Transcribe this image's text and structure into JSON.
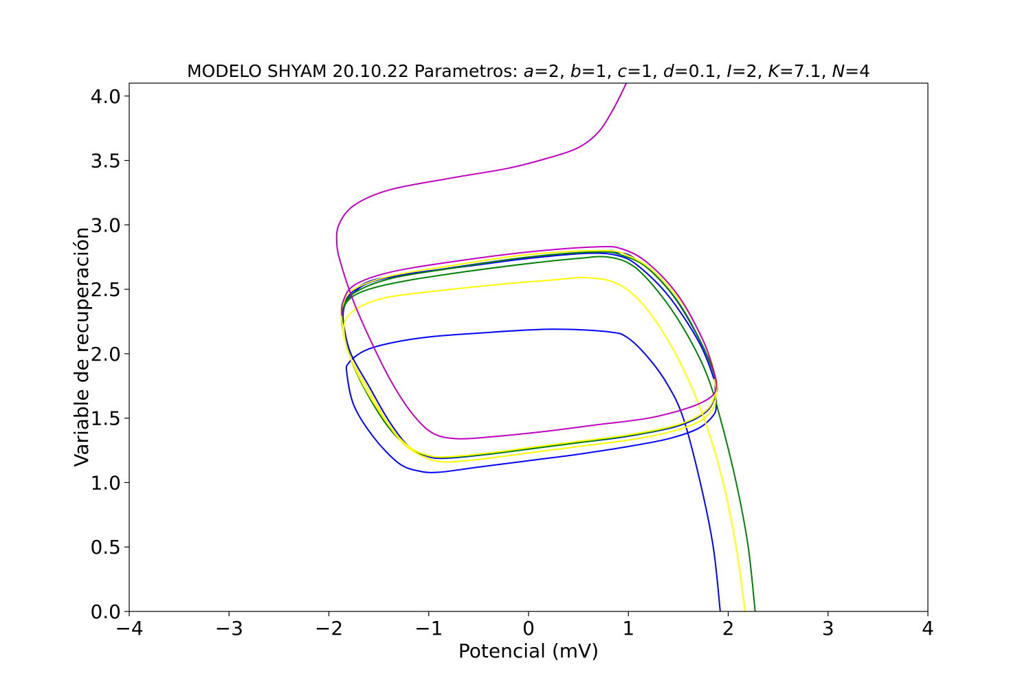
{
  "chart_data": {
    "type": "line",
    "title": {
      "prefix": "MODELO SHYAM 20.10.22 Parametros: ",
      "params": [
        {
          "name": "a",
          "value": "=2, "
        },
        {
          "name": "b",
          "value": "=1, "
        },
        {
          "name": "c",
          "value": "=1,  "
        },
        {
          "name": "d",
          "value": "=0.1, "
        },
        {
          "name": "I",
          "value": "=2, "
        },
        {
          "name": "K",
          "value": "=7.1, "
        },
        {
          "name": "N",
          "value": "=4"
        }
      ]
    },
    "xlabel": "Potencial (mV)",
    "ylabel": "Variable de recuperación",
    "xlim": [
      -4,
      4
    ],
    "ylim": [
      0,
      4.1
    ],
    "xticks": [
      -4,
      -3,
      -2,
      -1,
      0,
      1,
      2,
      3,
      4
    ],
    "xtick_labels": [
      "−4",
      "−3",
      "−2",
      "−1",
      "0",
      "1",
      "2",
      "3",
      "4"
    ],
    "yticks": [
      0,
      0.5,
      1,
      1.5,
      2,
      2.5,
      3,
      3.5,
      4
    ],
    "ytick_labels": [
      "0.0",
      "0.5",
      "1.0",
      "1.5",
      "2.0",
      "2.5",
      "3.0",
      "3.5",
      "4.0"
    ],
    "grid": false,
    "legend": "none",
    "series": [
      {
        "color": "#0000ff",
        "points": [
          [
            1.92,
            0
          ],
          [
            1.85,
            0.5
          ],
          [
            1.72,
            1.0
          ],
          [
            1.55,
            1.5
          ],
          [
            1.4,
            1.75
          ],
          [
            1.22,
            1.95
          ],
          [
            1.0,
            2.12
          ],
          [
            0.8,
            2.17
          ],
          [
            0.2,
            2.19
          ],
          [
            -0.5,
            2.16
          ],
          [
            -1.0,
            2.13
          ],
          [
            -1.4,
            2.08
          ],
          [
            -1.65,
            2.02
          ],
          [
            -1.8,
            1.93
          ],
          [
            -1.82,
            1.85
          ],
          [
            -1.75,
            1.6
          ],
          [
            -1.55,
            1.35
          ],
          [
            -1.3,
            1.15
          ],
          [
            -1.1,
            1.09
          ],
          [
            -0.9,
            1.08
          ],
          [
            -0.5,
            1.12
          ],
          [
            0.0,
            1.17
          ],
          [
            0.5,
            1.22
          ],
          [
            1.0,
            1.28
          ],
          [
            1.4,
            1.34
          ],
          [
            1.7,
            1.42
          ],
          [
            1.85,
            1.52
          ],
          [
            1.88,
            1.6
          ],
          [
            1.87,
            1.72
          ],
          [
            1.85,
            1.82
          ],
          [
            1.7,
            2.1
          ],
          [
            1.4,
            2.45
          ],
          [
            1.1,
            2.68
          ],
          [
            0.9,
            2.76
          ],
          [
            0.6,
            2.78
          ],
          [
            0.0,
            2.74
          ],
          [
            -0.6,
            2.68
          ],
          [
            -1.2,
            2.62
          ],
          [
            -1.6,
            2.55
          ],
          [
            -1.78,
            2.45
          ],
          [
            -1.85,
            2.35
          ],
          [
            -1.85,
            2.22
          ],
          [
            -1.78,
            2.0
          ],
          [
            -1.6,
            1.75
          ],
          [
            -1.4,
            1.48
          ],
          [
            -1.2,
            1.28
          ],
          [
            -1.0,
            1.2
          ],
          [
            -0.8,
            1.19
          ],
          [
            -0.4,
            1.22
          ],
          [
            0.0,
            1.26
          ],
          [
            0.5,
            1.31
          ],
          [
            1.0,
            1.36
          ],
          [
            1.5,
            1.44
          ],
          [
            1.78,
            1.55
          ],
          [
            1.87,
            1.68
          ],
          [
            1.88,
            1.78
          ],
          [
            1.75,
            2.05
          ],
          [
            1.45,
            2.45
          ],
          [
            1.1,
            2.72
          ],
          [
            0.8,
            2.79
          ],
          [
            0.0,
            2.75
          ],
          [
            -1.0,
            2.64
          ],
          [
            -1.6,
            2.56
          ],
          [
            -1.85,
            2.4
          ],
          [
            -1.86,
            2.28
          ]
        ]
      },
      {
        "color": "#008000",
        "points": [
          [
            2.27,
            0
          ],
          [
            2.2,
            0.5
          ],
          [
            2.08,
            1.0
          ],
          [
            1.92,
            1.5
          ],
          [
            1.78,
            1.85
          ],
          [
            1.55,
            2.2
          ],
          [
            1.3,
            2.48
          ],
          [
            1.05,
            2.68
          ],
          [
            0.8,
            2.75
          ],
          [
            0.5,
            2.74
          ],
          [
            0.0,
            2.7
          ],
          [
            -0.6,
            2.64
          ],
          [
            -1.2,
            2.57
          ],
          [
            -1.6,
            2.5
          ],
          [
            -1.8,
            2.42
          ],
          [
            -1.87,
            2.3
          ],
          [
            -1.85,
            2.15
          ],
          [
            -1.75,
            1.9
          ],
          [
            -1.55,
            1.6
          ],
          [
            -1.35,
            1.38
          ],
          [
            -1.15,
            1.25
          ],
          [
            -0.95,
            1.2
          ],
          [
            -0.7,
            1.2
          ],
          [
            -0.3,
            1.23
          ],
          [
            0.2,
            1.28
          ],
          [
            0.7,
            1.33
          ],
          [
            1.2,
            1.39
          ],
          [
            1.55,
            1.46
          ],
          [
            1.78,
            1.56
          ],
          [
            1.87,
            1.68
          ],
          [
            1.88,
            1.78
          ],
          [
            1.75,
            2.05
          ],
          [
            1.5,
            2.4
          ],
          [
            1.2,
            2.66
          ],
          [
            0.95,
            2.76
          ],
          [
            0.7,
            2.79
          ],
          [
            0.0,
            2.75
          ],
          [
            -0.8,
            2.66
          ],
          [
            -1.4,
            2.58
          ],
          [
            -1.75,
            2.47
          ],
          [
            -1.86,
            2.35
          ],
          [
            -1.86,
            2.25
          ]
        ]
      },
      {
        "color": "#ffff00",
        "points": [
          [
            2.17,
            0
          ],
          [
            2.08,
            0.5
          ],
          [
            1.95,
            1.0
          ],
          [
            1.78,
            1.45
          ],
          [
            1.6,
            1.8
          ],
          [
            1.4,
            2.1
          ],
          [
            1.15,
            2.38
          ],
          [
            0.9,
            2.54
          ],
          [
            0.6,
            2.59
          ],
          [
            0.2,
            2.57
          ],
          [
            -0.4,
            2.53
          ],
          [
            -1.0,
            2.48
          ],
          [
            -1.4,
            2.44
          ],
          [
            -1.65,
            2.38
          ],
          [
            -1.8,
            2.3
          ],
          [
            -1.85,
            2.2
          ],
          [
            -1.8,
            2.0
          ],
          [
            -1.65,
            1.75
          ],
          [
            -1.45,
            1.5
          ],
          [
            -1.25,
            1.3
          ],
          [
            -1.05,
            1.2
          ],
          [
            -0.85,
            1.16
          ],
          [
            -0.5,
            1.18
          ],
          [
            0.0,
            1.23
          ],
          [
            0.5,
            1.28
          ],
          [
            1.0,
            1.33
          ],
          [
            1.4,
            1.39
          ],
          [
            1.7,
            1.47
          ],
          [
            1.85,
            1.58
          ],
          [
            1.88,
            1.7
          ],
          [
            1.88,
            1.8
          ],
          [
            1.78,
            2.05
          ],
          [
            1.55,
            2.38
          ],
          [
            1.25,
            2.64
          ],
          [
            1.0,
            2.76
          ],
          [
            0.75,
            2.8
          ],
          [
            0.0,
            2.77
          ],
          [
            -0.8,
            2.68
          ],
          [
            -1.4,
            2.6
          ],
          [
            -1.75,
            2.5
          ],
          [
            -1.86,
            2.38
          ],
          [
            -1.87,
            2.25
          ],
          [
            -1.8,
            2.0
          ],
          [
            -1.6,
            1.72
          ],
          [
            -1.4,
            1.45
          ],
          [
            -1.2,
            1.28
          ],
          [
            -1.0,
            1.21
          ],
          [
            -0.8,
            1.2
          ],
          [
            -0.4,
            1.23
          ],
          [
            0.0,
            1.27
          ],
          [
            0.5,
            1.32
          ],
          [
            1.0,
            1.37
          ],
          [
            1.5,
            1.45
          ],
          [
            1.78,
            1.56
          ],
          [
            1.87,
            1.7
          ],
          [
            1.86,
            1.8
          ]
        ]
      },
      {
        "color": "#c000c0",
        "points": [
          [
            0.98,
            4.1
          ],
          [
            0.85,
            3.9
          ],
          [
            0.7,
            3.72
          ],
          [
            0.5,
            3.6
          ],
          [
            0.2,
            3.52
          ],
          [
            -0.2,
            3.44
          ],
          [
            -0.8,
            3.36
          ],
          [
            -1.4,
            3.27
          ],
          [
            -1.75,
            3.15
          ],
          [
            -1.9,
            3.0
          ],
          [
            -1.92,
            2.85
          ],
          [
            -1.88,
            2.7
          ],
          [
            -1.75,
            2.4
          ],
          [
            -1.55,
            2.05
          ],
          [
            -1.35,
            1.75
          ],
          [
            -1.15,
            1.52
          ],
          [
            -0.95,
            1.38
          ],
          [
            -0.7,
            1.34
          ],
          [
            -0.3,
            1.36
          ],
          [
            0.2,
            1.4
          ],
          [
            0.7,
            1.45
          ],
          [
            1.2,
            1.5
          ],
          [
            1.6,
            1.58
          ],
          [
            1.82,
            1.66
          ],
          [
            1.88,
            1.74
          ],
          [
            1.86,
            1.85
          ],
          [
            1.75,
            2.1
          ],
          [
            1.5,
            2.45
          ],
          [
            1.2,
            2.7
          ],
          [
            0.95,
            2.81
          ],
          [
            0.7,
            2.83
          ],
          [
            0.0,
            2.79
          ],
          [
            -0.8,
            2.71
          ],
          [
            -1.4,
            2.63
          ],
          [
            -1.75,
            2.53
          ],
          [
            -1.86,
            2.4
          ],
          [
            -1.87,
            2.3
          ]
        ]
      }
    ]
  }
}
